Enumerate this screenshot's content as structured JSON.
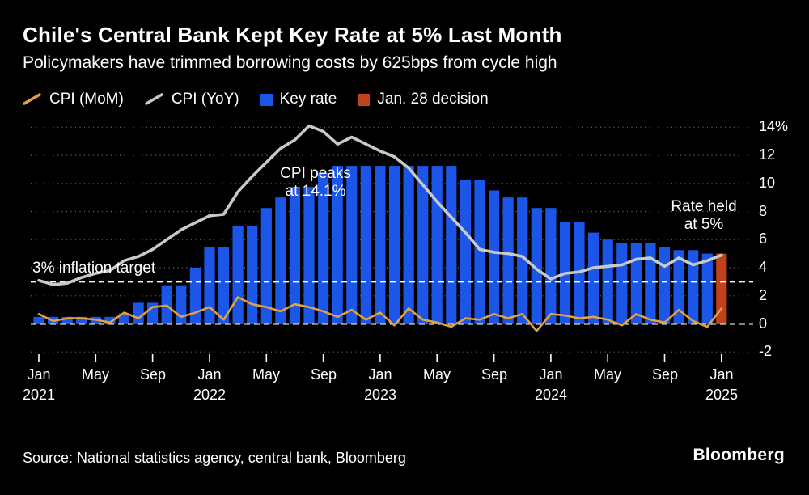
{
  "header": {
    "title": "Chile's Central Bank Kept Key Rate at 5% Last Month",
    "subtitle": "Policymakers have trimmed borrowing costs by 625bps from cycle high"
  },
  "legend": [
    {
      "label": "CPI (MoM)",
      "swatch": "line",
      "color": "#E3A141"
    },
    {
      "label": "CPI (YoY)",
      "swatch": "line",
      "color": "#C9C9C9"
    },
    {
      "label": "Key rate",
      "swatch": "square",
      "color": "#1C56E8"
    },
    {
      "label": "Jan. 28 decision",
      "swatch": "square",
      "color": "#C2401C"
    }
  ],
  "annotations": {
    "peak": "CPI peaks\nat 14.1%",
    "rate_held": "Rate held\nat 5%"
  },
  "chart_data": {
    "type": "bar+line combo",
    "title": "Chile's Central Bank Kept Key Rate at 5% Last Month",
    "subtitle": "Policymakers have trimmed borrowing costs by 625bps from cycle high",
    "xlabel": "",
    "ylabel": "",
    "ylim": [
      -2,
      14.5
    ],
    "grid": true,
    "legend_position": "top",
    "categories": [
      "Jan 2021",
      "Feb 2021",
      "Mar 2021",
      "Apr 2021",
      "May 2021",
      "Jun 2021",
      "Jul 2021",
      "Aug 2021",
      "Sep 2021",
      "Oct 2021",
      "Nov 2021",
      "Dec 2021",
      "Jan 2022",
      "Feb 2022",
      "Mar 2022",
      "Apr 2022",
      "May 2022",
      "Jun 2022",
      "Jul 2022",
      "Aug 2022",
      "Sep 2022",
      "Oct 2022",
      "Nov 2022",
      "Dec 2022",
      "Jan 2023",
      "Feb 2023",
      "Mar 2023",
      "Apr 2023",
      "May 2023",
      "Jun 2023",
      "Jul 2023",
      "Aug 2023",
      "Sep 2023",
      "Oct 2023",
      "Nov 2023",
      "Dec 2023",
      "Jan 2024",
      "Feb 2024",
      "Mar 2024",
      "Apr 2024",
      "May 2024",
      "Jun 2024",
      "Jul 2024",
      "Aug 2024",
      "Sep 2024",
      "Oct 2024",
      "Nov 2024",
      "Dec 2024",
      "Jan 2025"
    ],
    "series": [
      {
        "id": "key_rate",
        "name": "Key rate",
        "type": "bar",
        "color": "#1C56E8",
        "values": [
          0.5,
          0.5,
          0.5,
          0.5,
          0.5,
          0.5,
          0.75,
          1.5,
          1.5,
          2.75,
          2.75,
          4.0,
          5.5,
          5.5,
          7.0,
          7.0,
          8.25,
          9.0,
          9.75,
          9.75,
          10.75,
          11.25,
          11.25,
          11.25,
          11.25,
          11.25,
          11.25,
          11.25,
          11.25,
          11.25,
          10.25,
          10.25,
          9.5,
          9.0,
          9.0,
          8.25,
          8.25,
          7.25,
          7.25,
          6.5,
          6.0,
          5.75,
          5.75,
          5.75,
          5.5,
          5.25,
          5.25,
          5.0,
          5.0
        ]
      },
      {
        "id": "cpi_yoy",
        "name": "CPI (YoY)",
        "type": "line",
        "color": "#C9C9C9",
        "values": [
          3.1,
          2.8,
          2.9,
          3.3,
          3.6,
          3.8,
          4.5,
          4.8,
          5.3,
          6.0,
          6.7,
          7.2,
          7.7,
          7.8,
          9.4,
          10.5,
          11.5,
          12.5,
          13.1,
          14.1,
          13.7,
          12.8,
          13.3,
          12.8,
          12.3,
          11.9,
          11.1,
          9.9,
          8.7,
          7.6,
          6.5,
          5.3,
          5.1,
          5.0,
          4.8,
          3.9,
          3.2,
          3.6,
          3.7,
          4.0,
          4.1,
          4.2,
          4.6,
          4.7,
          4.1,
          4.7,
          4.2,
          4.5,
          4.9
        ]
      },
      {
        "id": "cpi_mom",
        "name": "CPI (MoM)",
        "type": "line",
        "color": "#E3A141",
        "values": [
          0.7,
          0.2,
          0.4,
          0.4,
          0.3,
          0.1,
          0.8,
          0.4,
          1.2,
          1.3,
          0.5,
          0.8,
          1.2,
          0.3,
          1.9,
          1.4,
          1.2,
          0.9,
          1.4,
          1.2,
          0.9,
          0.5,
          1.0,
          0.3,
          0.8,
          -0.1,
          1.1,
          0.3,
          0.1,
          -0.2,
          0.4,
          0.3,
          0.7,
          0.4,
          0.7,
          -0.5,
          0.7,
          0.6,
          0.4,
          0.5,
          0.3,
          -0.1,
          0.7,
          0.3,
          0.1,
          1.0,
          0.2,
          -0.2,
          1.1
        ]
      }
    ],
    "decision": {
      "index": 48,
      "category": "Jan 2025",
      "label": "Jan. 28 decision",
      "value": 5.0,
      "color": "#C2401C"
    },
    "target_line": {
      "value": 3,
      "label": "3% inflation target"
    },
    "zero_line": {
      "value": 0
    },
    "y_axis": {
      "ticks": [
        {
          "label": "14%",
          "value": 14
        },
        {
          "label": "12",
          "value": 12
        },
        {
          "label": "10",
          "value": 10
        },
        {
          "label": "8",
          "value": 8
        },
        {
          "label": "6",
          "value": 6
        },
        {
          "label": "4",
          "value": 4
        },
        {
          "label": "2",
          "value": 2
        },
        {
          "label": "0",
          "value": 0
        },
        {
          "label": "-2",
          "value": -2
        }
      ]
    },
    "x_axis": {
      "ticks": [
        {
          "index": 0,
          "label": "Jan",
          "year": "2021"
        },
        {
          "index": 4,
          "label": "May"
        },
        {
          "index": 8,
          "label": "Sep"
        },
        {
          "index": 12,
          "label": "Jan",
          "year": "2022"
        },
        {
          "index": 16,
          "label": "May"
        },
        {
          "index": 20,
          "label": "Sep"
        },
        {
          "index": 24,
          "label": "Jan",
          "year": "2023"
        },
        {
          "index": 28,
          "label": "May"
        },
        {
          "index": 32,
          "label": "Sep"
        },
        {
          "index": 36,
          "label": "Jan",
          "year": "2024"
        },
        {
          "index": 40,
          "label": "May"
        },
        {
          "index": 44,
          "label": "Sep"
        },
        {
          "index": 48,
          "label": "Jan",
          "year": "2025"
        }
      ]
    }
  },
  "footer": {
    "source": "Source: National statistics agency, central bank, Bloomberg",
    "brand": "Bloomberg"
  },
  "colors": {
    "background": "#000000",
    "text": "#FFFFFF",
    "grid": "#6F6F6F",
    "key_rate": "#1C56E8",
    "decision": "#C2401C",
    "cpi_mom": "#E3A141",
    "cpi_yoy": "#C9C9C9"
  }
}
